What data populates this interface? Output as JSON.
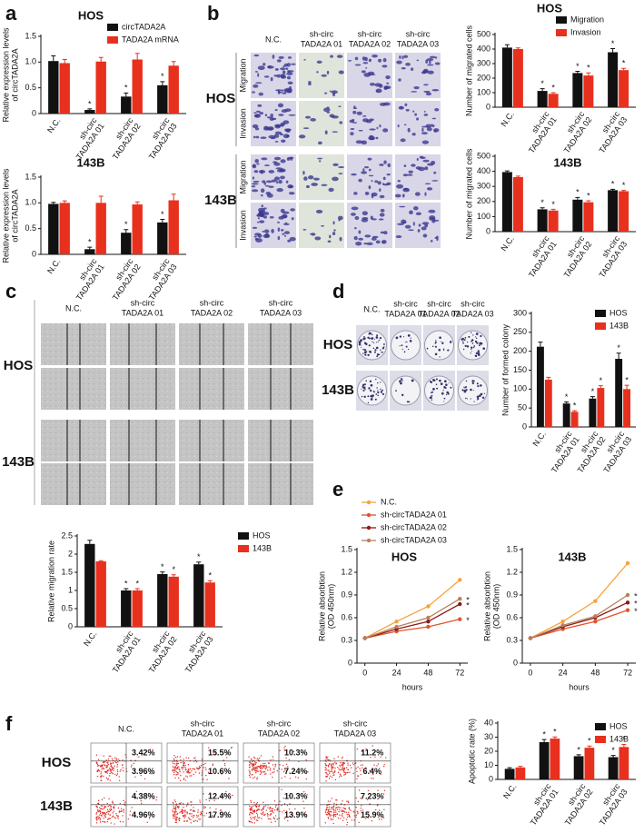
{
  "figure": {
    "panel_labels": [
      "a",
      "b",
      "c",
      "d",
      "e",
      "f"
    ],
    "b_images": {
      "columns": [
        [
          "N.C."
        ],
        [
          "sh-circ",
          "TADA2A 01"
        ],
        [
          "sh-circ",
          "TADA2A 02"
        ],
        [
          "sh-circ",
          "TADA2A 03"
        ]
      ],
      "rows": [
        "HOS",
        "143B"
      ],
      "subrows": [
        "Migration",
        "Invasion"
      ]
    },
    "c_images": {
      "columns": [
        [
          "N.C."
        ],
        [
          "sh-circ",
          "TADA2A 01"
        ],
        [
          "sh-circ",
          "TADA2A 02"
        ],
        [
          "sh-circ",
          "TADA2A 03"
        ]
      ],
      "rows": [
        "HOS",
        "143B"
      ]
    },
    "d_images": {
      "columns": [
        [
          "N.C."
        ],
        [
          "sh-circ",
          "TADA2A 01"
        ],
        [
          "sh-circ",
          "TADA2A 02"
        ],
        [
          "sh-circ",
          "TADA2A 03"
        ]
      ],
      "rows": [
        "HOS",
        "143B"
      ]
    },
    "f_flow": {
      "columns": [
        [
          "N.C."
        ],
        [
          "sh-circ",
          "TADA2A 01"
        ],
        [
          "sh-circ",
          "TADA2A 02"
        ],
        [
          "sh-circ",
          "TADA2A 03"
        ]
      ],
      "rows": [
        "HOS",
        "143B"
      ],
      "percents": [
        [
          [
            "3.42%",
            "3.96%"
          ],
          [
            "15.5%",
            "10.6%"
          ],
          [
            "10.3%",
            "7.24%"
          ],
          [
            "11.2%",
            "6.4%"
          ]
        ],
        [
          [
            "4.38%",
            "4.96%"
          ],
          [
            "12.4%",
            "17.9%"
          ],
          [
            "10.3%",
            "13.9%"
          ],
          [
            "7.23%",
            "15.9%"
          ]
        ]
      ]
    }
  },
  "chart_data": [
    {
      "type": "bar",
      "title": "HOS",
      "ylabel": [
        "Relative expression levels",
        "of circTADA2A"
      ],
      "categories": [
        [
          "N.C."
        ],
        [
          "sh-circ",
          "TADA2A 01"
        ],
        [
          "sh-circ",
          "TADA2A 02"
        ],
        [
          "sh-circ",
          "TADA2A 03"
        ]
      ],
      "series": [
        {
          "name": "circTADA2A",
          "color": "#111111",
          "values": [
            1.02,
            0.07,
            0.33,
            0.55
          ],
          "errors": [
            0.1,
            0.02,
            0.07,
            0.07
          ],
          "significance": [
            null,
            "*",
            "*",
            "*"
          ]
        },
        {
          "name": "TADA2A mRNA",
          "color": "#e8301e",
          "values": [
            0.98,
            1.01,
            1.05,
            0.93
          ],
          "errors": [
            0.07,
            0.08,
            0.12,
            0.08
          ]
        }
      ],
      "ylim": [
        0,
        1.5
      ],
      "yticks": [
        0,
        0.5,
        {
          "value": 1,
          "label": "1.0"
        },
        1.5
      ],
      "legend": "upper right"
    },
    {
      "type": "bar",
      "title": "143B",
      "ylabel": [
        "Relative expression levels",
        "of circTADA2A"
      ],
      "categories": [
        [
          "N.C."
        ],
        [
          "sh-circ",
          "TADA2A 01"
        ],
        [
          "sh-circ",
          "TADA2A 02"
        ],
        [
          "sh-circ",
          "TADA2A 03"
        ]
      ],
      "series": [
        {
          "color": "#111111",
          "values": [
            0.98,
            0.1,
            0.42,
            0.62
          ],
          "errors": [
            0.03,
            0.04,
            0.06,
            0.06
          ],
          "significance": [
            null,
            "*",
            "*",
            "*"
          ]
        },
        {
          "color": "#e8301e",
          "values": [
            1.0,
            1.0,
            0.97,
            1.05
          ],
          "errors": [
            0.04,
            0.13,
            0.05,
            0.12
          ]
        }
      ],
      "ylim": [
        0,
        1.5
      ],
      "yticks": [
        0,
        0.5,
        {
          "value": 1,
          "label": "1.0"
        },
        1.5
      ]
    },
    {
      "type": "bar",
      "title": "HOS",
      "ylabel": [
        "Number of migrated cells"
      ],
      "categories": [
        [
          "N.C."
        ],
        [
          "sh-circ",
          "TADA2A 01"
        ],
        [
          "sh-circ",
          "TADA2A 02"
        ],
        [
          "sh-circ",
          "TADA2A 03"
        ]
      ],
      "series": [
        {
          "name": "Migration",
          "color": "#111111",
          "values": [
            410,
            112,
            235,
            378
          ],
          "errors": [
            20,
            15,
            12,
            25
          ],
          "significance": [
            null,
            "*",
            "*",
            "*"
          ]
        },
        {
          "name": "Invasion",
          "color": "#e8301e",
          "values": [
            400,
            92,
            218,
            255
          ],
          "errors": [
            8,
            8,
            18,
            12
          ],
          "significance": [
            null,
            "*",
            "*",
            "*"
          ]
        }
      ],
      "ylim": [
        0,
        500
      ],
      "yticks": [
        0,
        100,
        200,
        300,
        400,
        500
      ],
      "legend": "upper right"
    },
    {
      "type": "bar",
      "title": "143B",
      "ylabel": [
        "Number of migrated cells"
      ],
      "categories": [
        [
          "N.C."
        ],
        [
          "sh-circ",
          "TADA2A 01"
        ],
        [
          "sh-circ",
          "TADA2A 02"
        ],
        [
          "sh-circ",
          "TADA2A 03"
        ]
      ],
      "series": [
        {
          "color": "#111111",
          "values": [
            395,
            148,
            212,
            275
          ],
          "errors": [
            8,
            10,
            15,
            6
          ],
          "significance": [
            null,
            "*",
            "*",
            "*"
          ]
        },
        {
          "color": "#e8301e",
          "values": [
            362,
            140,
            195,
            268
          ],
          "errors": [
            6,
            8,
            10,
            5
          ],
          "significance": [
            null,
            "*",
            "*",
            "*"
          ]
        }
      ],
      "ylim": [
        0,
        500
      ],
      "yticks": [
        0,
        100,
        200,
        300,
        400,
        500
      ]
    },
    {
      "type": "bar",
      "ylabel": [
        "Relative migration rate"
      ],
      "categories": [
        [
          "N.C."
        ],
        [
          "sh-circ",
          "TADA2A 01"
        ],
        [
          "sh-circ",
          "TADA2A 02"
        ],
        [
          "sh-circ",
          "TADA2A 03"
        ]
      ],
      "series": [
        {
          "name": "HOS",
          "color": "#111111",
          "values": [
            2.28,
            1.0,
            1.45,
            1.72
          ],
          "errors": [
            0.1,
            0.05,
            0.06,
            0.06
          ],
          "significance": [
            null,
            "*",
            "*",
            "*"
          ]
        },
        {
          "name": "143B",
          "color": "#e8301e",
          "values": [
            1.8,
            1.0,
            1.38,
            1.22
          ],
          "errors": [
            0.02,
            0.05,
            0.05,
            0.05
          ],
          "significance": [
            null,
            "*",
            "*",
            "*"
          ]
        }
      ],
      "ylim": [
        0,
        2.5
      ],
      "yticks": [
        0,
        0.5,
        1,
        1.5,
        2,
        2.5
      ],
      "legend": "outside right"
    },
    {
      "type": "bar",
      "ylabel": [
        "Number of formed colony"
      ],
      "categories": [
        [
          "N.C."
        ],
        [
          "sh-circ",
          "TADA2A 01"
        ],
        [
          "sh-circ",
          "TADA2A 02"
        ],
        [
          "sh-circ",
          "TADA2A 03"
        ]
      ],
      "series": [
        {
          "name": "HOS",
          "color": "#111111",
          "values": [
            212,
            62,
            75,
            180
          ],
          "errors": [
            12,
            4,
            5,
            15
          ],
          "significance": [
            null,
            "*",
            "*",
            "*"
          ]
        },
        {
          "name": "143B",
          "color": "#e8301e",
          "values": [
            125,
            40,
            103,
            100
          ],
          "errors": [
            6,
            3,
            6,
            10
          ],
          "significance": [
            null,
            "*",
            "*",
            "*"
          ]
        }
      ],
      "ylim": [
        0,
        300
      ],
      "yticks": [
        0,
        50,
        100,
        150,
        200,
        250,
        300
      ],
      "legend": "upper right"
    },
    {
      "type": "line",
      "title": "HOS",
      "ylabel": [
        "Relative absorbtion",
        "(OD 450nm)"
      ],
      "xlabel": "hours",
      "x": [
        0,
        24,
        48,
        72
      ],
      "xlim": [
        -6,
        78
      ],
      "xticks": [
        0,
        24,
        48,
        72
      ],
      "series": [
        {
          "name": "N.C.",
          "color": "#f5a33c",
          "values": [
            0.33,
            0.55,
            0.75,
            1.1
          ]
        },
        {
          "name": "sh-circTADA2A 01",
          "color": "#e0542a",
          "values": [
            0.33,
            0.42,
            0.48,
            0.58
          ],
          "significance": [
            null,
            null,
            null,
            "*"
          ]
        },
        {
          "name": "sh-circTADA2A 02",
          "color": "#8b1a1a",
          "values": [
            0.33,
            0.45,
            0.55,
            0.78
          ],
          "significance": [
            null,
            null,
            null,
            "*"
          ]
        },
        {
          "name": "sh-circTADA2A 03",
          "color": "#b8805a",
          "values": [
            0.33,
            0.48,
            0.6,
            0.85
          ],
          "significance": [
            null,
            null,
            null,
            "*"
          ]
        }
      ],
      "ylim": [
        0,
        1.5
      ],
      "yticks": [
        0,
        0.3,
        0.6,
        0.9,
        1.2,
        1.5
      ],
      "legend": "upper left"
    },
    {
      "type": "line",
      "title": "143B",
      "ylabel": [
        "Relative absorbtion",
        "(OD 450nm)"
      ],
      "xlabel": "hours",
      "x": [
        0,
        24,
        48,
        72
      ],
      "xlim": [
        -6,
        78
      ],
      "xticks": [
        0,
        24,
        48,
        72
      ],
      "series": [
        {
          "color": "#f5a33c",
          "values": [
            0.33,
            0.55,
            0.82,
            1.32
          ]
        },
        {
          "color": "#e0542a",
          "values": [
            0.33,
            0.45,
            0.55,
            0.7
          ],
          "significance": [
            null,
            null,
            null,
            "*"
          ]
        },
        {
          "color": "#8b1a1a",
          "values": [
            0.33,
            0.48,
            0.6,
            0.8
          ],
          "significance": [
            null,
            null,
            null,
            "*"
          ]
        },
        {
          "color": "#b8805a",
          "values": [
            0.33,
            0.5,
            0.62,
            0.9
          ],
          "significance": [
            null,
            null,
            null,
            "*"
          ]
        }
      ],
      "ylim": [
        0,
        1.5
      ],
      "yticks": [
        0,
        0.3,
        0.6,
        0.9,
        1.2,
        1.5
      ]
    },
    {
      "type": "bar",
      "ylabel": [
        "Apoptotic rate (%)"
      ],
      "categories": [
        [
          "N.C."
        ],
        [
          "sh-circ",
          "TADA2A 01"
        ],
        [
          "sh-circ",
          "TADA2A 02"
        ],
        [
          "sh-circ",
          "TADA2A 03"
        ]
      ],
      "series": [
        {
          "name": "HOS",
          "color": "#111111",
          "values": [
            7.5,
            26.5,
            16.5,
            15.8
          ],
          "errors": [
            0.8,
            1.8,
            1,
            1.2
          ],
          "significance": [
            null,
            "*",
            "*",
            "*"
          ]
        },
        {
          "name": "143B",
          "color": "#e8301e",
          "values": [
            8.5,
            29,
            22.5,
            23
          ],
          "errors": [
            0.8,
            1.2,
            1.2,
            1.8
          ],
          "significance": [
            null,
            "*",
            "*",
            "*"
          ]
        }
      ],
      "ylim": [
        0,
        40
      ],
      "yticks": [
        0,
        10,
        20,
        30,
        40
      ],
      "legend": "upper right"
    }
  ]
}
